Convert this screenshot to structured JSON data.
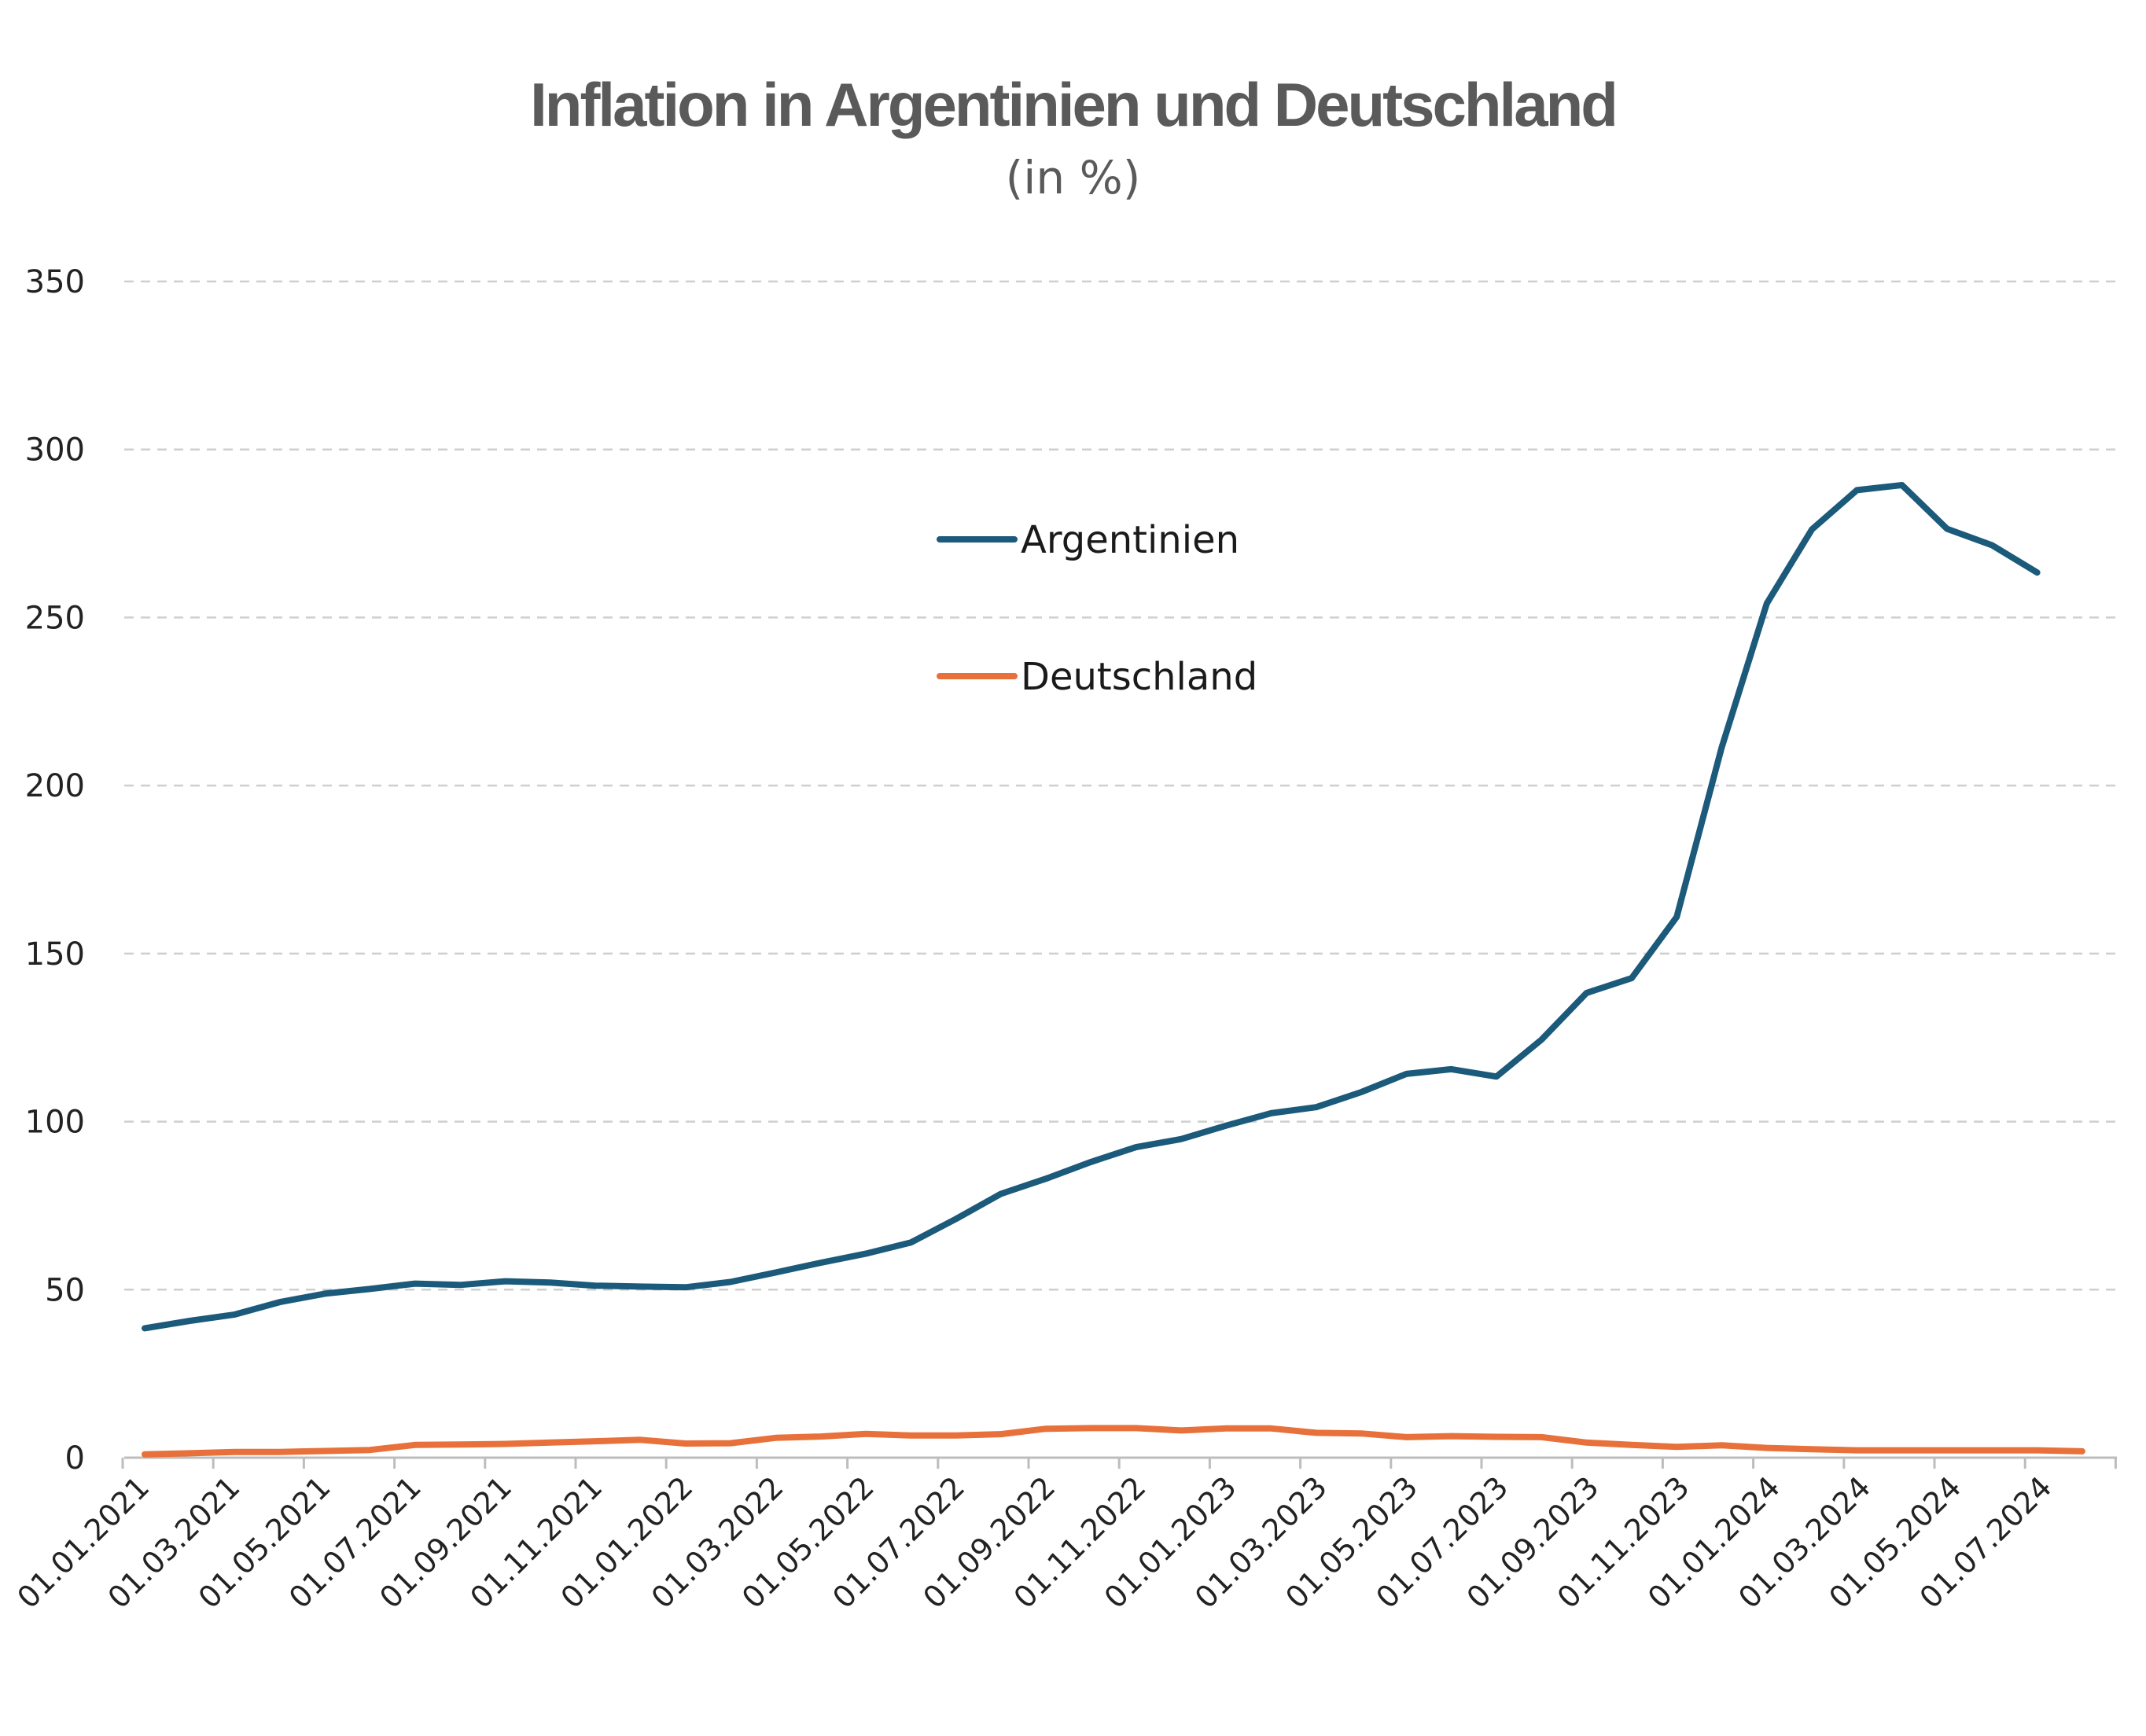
{
  "chart_data": {
    "type": "line",
    "title": "Inflation in Argentinien und Deutschland",
    "subtitle": "(in %)",
    "xlabel": "",
    "ylabel": "",
    "ylim": [
      0,
      350
    ],
    "yticks": [
      0,
      50,
      100,
      150,
      200,
      250,
      300,
      350
    ],
    "grid": "horizontal dashed",
    "legend_position": "top-center",
    "x_tick_labels": [
      "01.01.2021",
      "01.03.2021",
      "01.05.2021",
      "01.07.2021",
      "01.09.2021",
      "01.11.2021",
      "01.01.2022",
      "01.03.2022",
      "01.05.2022",
      "01.07.2022",
      "01.09.2022",
      "01.11.2022",
      "01.01.2023",
      "01.03.2023",
      "01.05.2023",
      "01.07.2023",
      "01.09.2023",
      "01.11.2023",
      "01.01.2024",
      "01.03.2024",
      "01.05.2024",
      "01.07.2024"
    ],
    "x": [
      "01.01.2021",
      "01.02.2021",
      "01.03.2021",
      "01.04.2021",
      "01.05.2021",
      "01.06.2021",
      "01.07.2021",
      "01.08.2021",
      "01.09.2021",
      "01.10.2021",
      "01.11.2021",
      "01.12.2021",
      "01.01.2022",
      "01.02.2022",
      "01.03.2022",
      "01.04.2022",
      "01.05.2022",
      "01.06.2022",
      "01.07.2022",
      "01.08.2022",
      "01.09.2022",
      "01.10.2022",
      "01.11.2022",
      "01.12.2022",
      "01.01.2023",
      "01.02.2023",
      "01.03.2023",
      "01.04.2023",
      "01.05.2023",
      "01.06.2023",
      "01.07.2023",
      "01.08.2023",
      "01.09.2023",
      "01.10.2023",
      "01.11.2023",
      "01.12.2023",
      "01.01.2024",
      "01.02.2024",
      "01.03.2024",
      "01.04.2024",
      "01.05.2024",
      "01.06.2024",
      "01.07.2024",
      "01.08.2024"
    ],
    "series": [
      {
        "name": "Argentinien",
        "color": "#1b5a7a",
        "values": [
          38.5,
          40.7,
          42.6,
          46.3,
          48.8,
          50.2,
          51.8,
          51.4,
          52.5,
          52.1,
          51.2,
          50.9,
          50.7,
          52.3,
          55.1,
          58.0,
          60.7,
          64.0,
          71.0,
          78.5,
          83.0,
          88.0,
          92.4,
          94.8,
          98.8,
          102.5,
          104.3,
          108.8,
          114.2,
          115.6,
          113.4,
          124.4,
          138.3,
          142.7,
          160.9,
          211.4,
          254.2,
          276.2,
          287.9,
          289.4,
          276.4,
          271.5,
          263.4,
          null
        ]
      },
      {
        "name": "Deutschland",
        "color": "#e8703a",
        "values": [
          1.0,
          1.3,
          1.7,
          1.7,
          2.0,
          2.3,
          3.8,
          3.9,
          4.1,
          4.5,
          4.9,
          5.3,
          4.2,
          4.3,
          5.9,
          6.3,
          7.1,
          6.6,
          6.6,
          7.0,
          8.6,
          8.8,
          8.8,
          8.1,
          8.7,
          8.7,
          7.4,
          7.2,
          6.1,
          6.4,
          6.2,
          6.1,
          4.5,
          3.8,
          3.2,
          3.7,
          2.9,
          2.5,
          2.2,
          2.2,
          2.2,
          2.2,
          2.2,
          1.9
        ]
      }
    ]
  }
}
